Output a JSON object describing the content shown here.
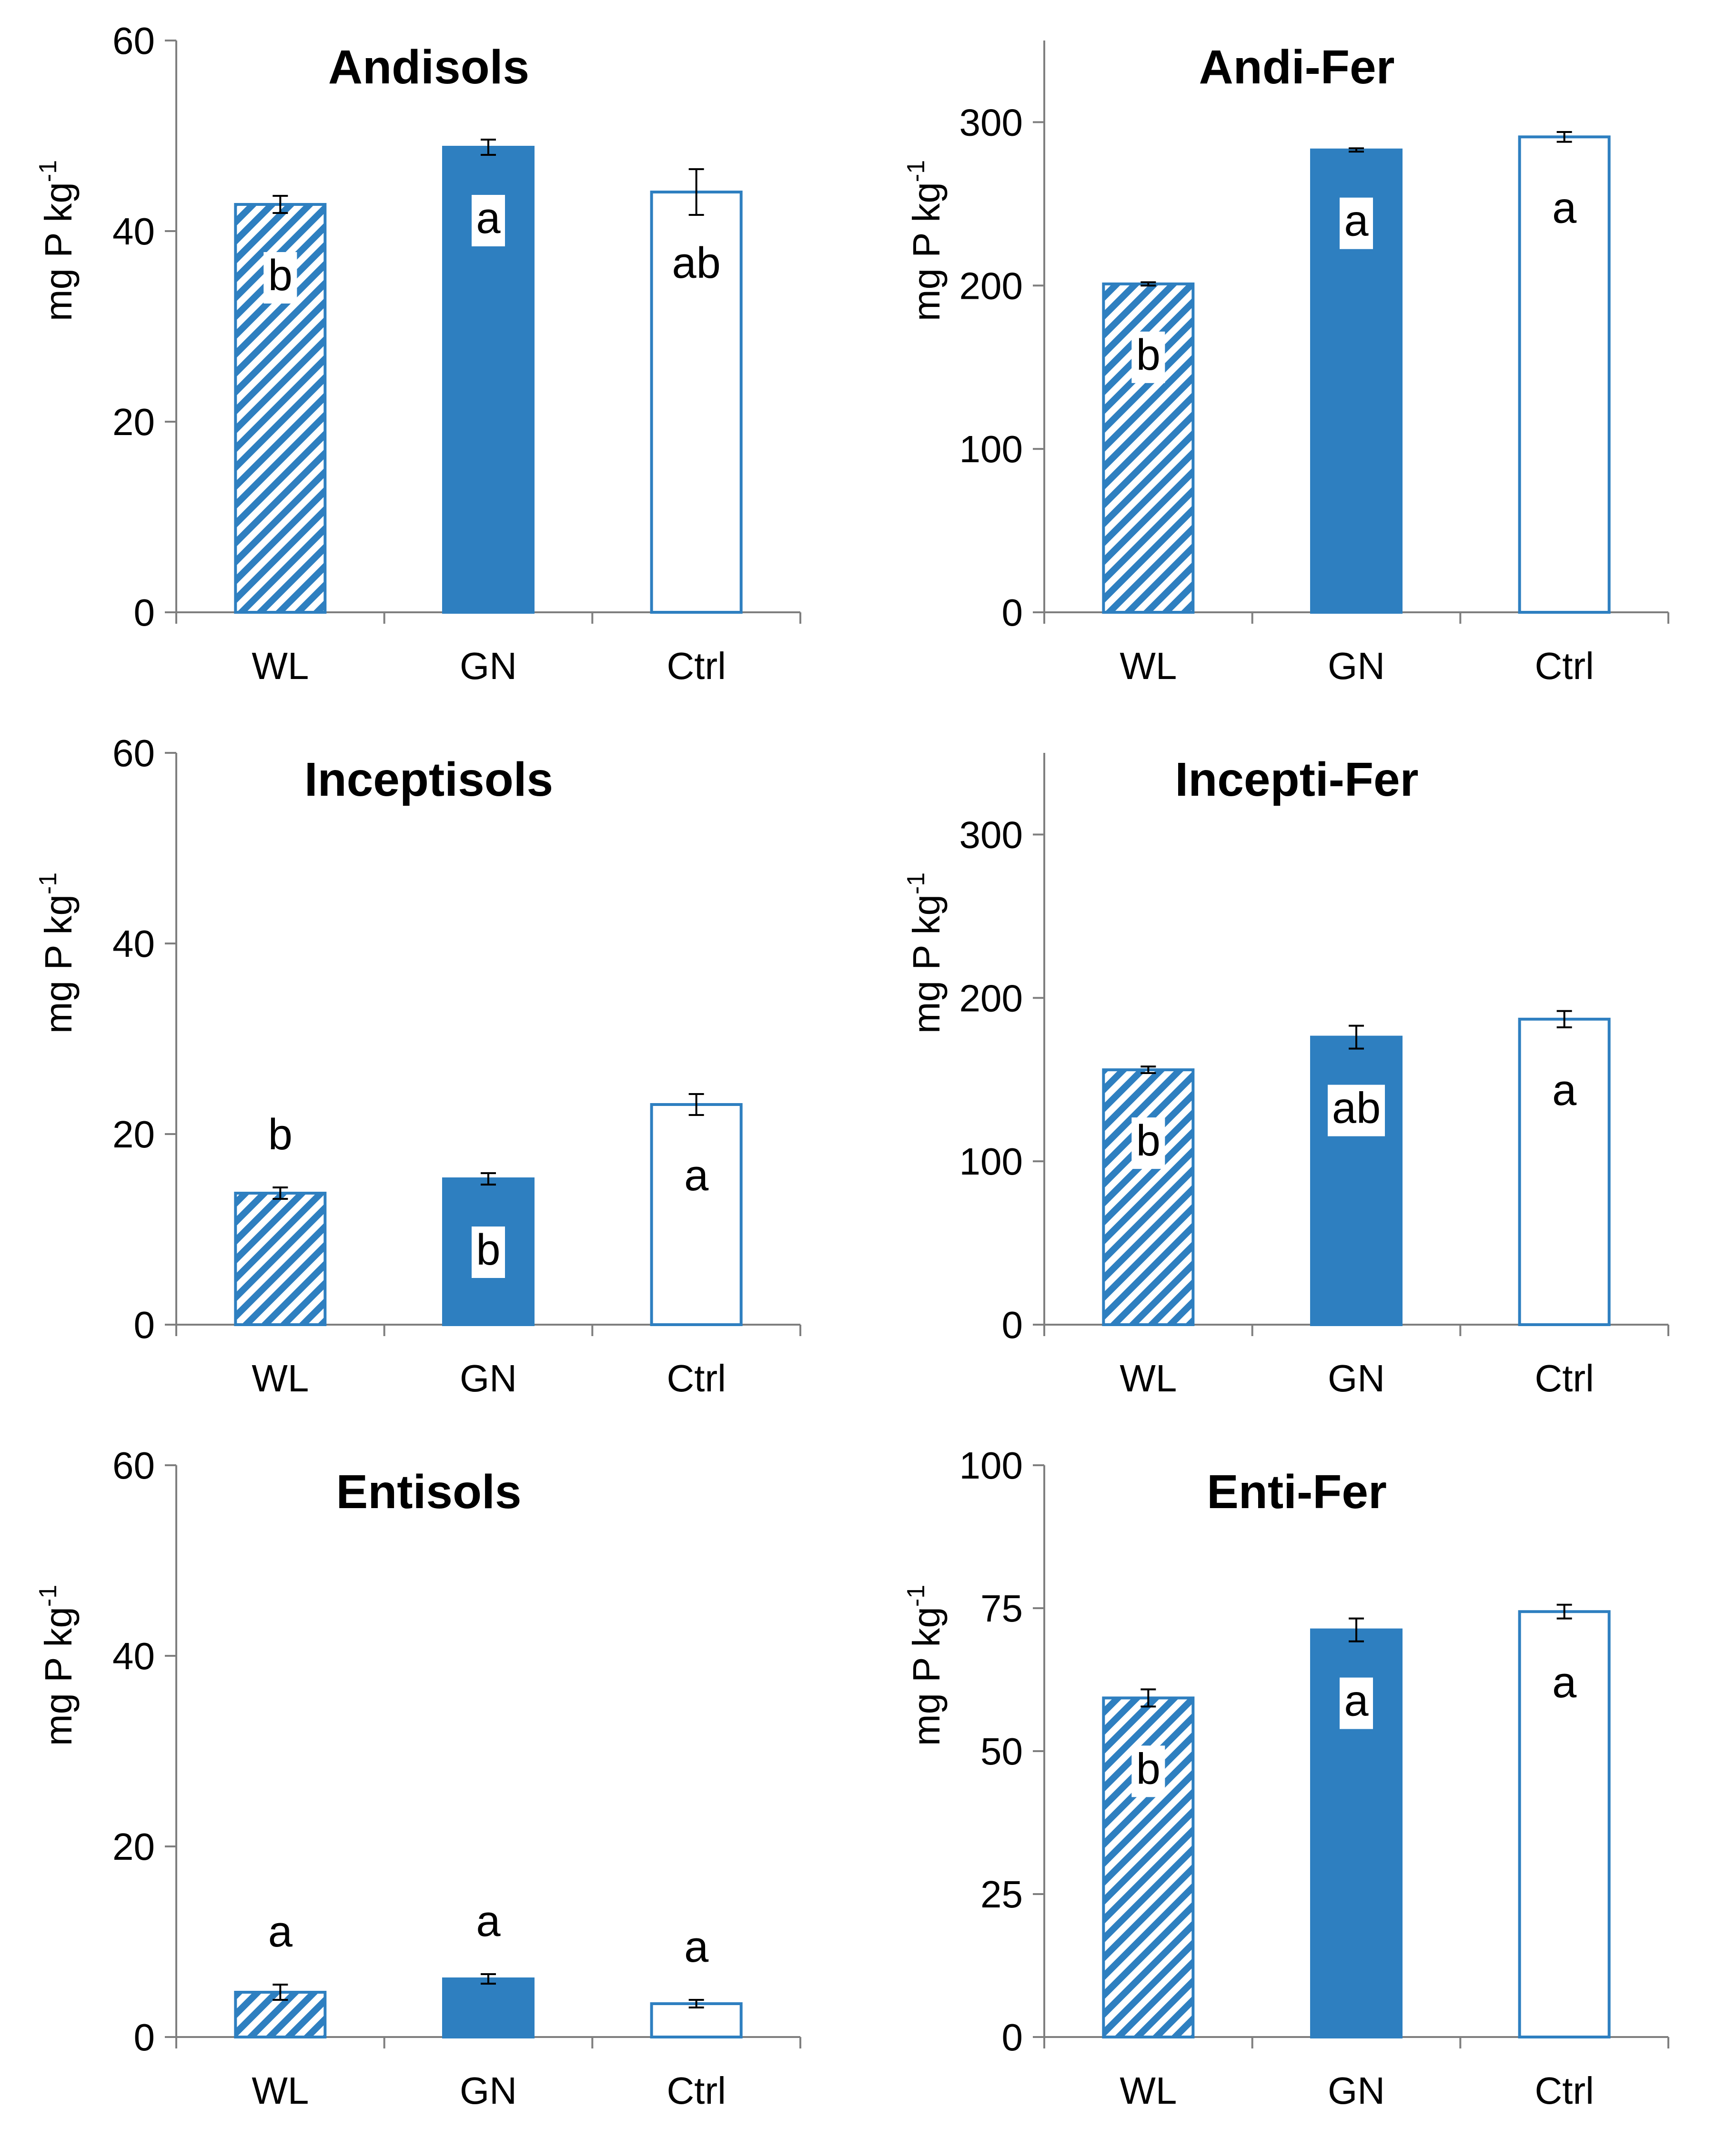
{
  "colors": {
    "bar_blue": "#2e7fc0",
    "axis": "#7f7f7f",
    "text": "#000000",
    "label_bg": "#ffffff"
  },
  "legend_styles": {
    "WL": "hatched",
    "GN": "solid",
    "Ctrl": "outline"
  },
  "chart_data": [
    {
      "type": "bar",
      "title": "Andisols",
      "ylabel": "mg P kg",
      "ylabel_sup": "-1",
      "categories": [
        "WL",
        "GN",
        "Ctrl"
      ],
      "values": [
        42.8,
        48.8,
        44.1
      ],
      "errors": [
        0.9,
        0.8,
        2.4
      ],
      "letters": [
        "b",
        "a",
        "ab"
      ],
      "ylim": [
        0,
        60
      ],
      "yticks": [
        0,
        20,
        40,
        60
      ]
    },
    {
      "type": "bar",
      "title": "Andi-Fer",
      "ylabel": "mg P kg",
      "ylabel_sup": "-1",
      "categories": [
        "WL",
        "GN",
        "Ctrl"
      ],
      "values": [
        201,
        283,
        291
      ],
      "errors": [
        1,
        1,
        3
      ],
      "letters": [
        "b",
        "a",
        "a"
      ],
      "ylim": [
        0,
        350
      ],
      "yticks": [
        0,
        100,
        200,
        300
      ]
    },
    {
      "type": "bar",
      "title": "Inceptisols",
      "ylabel": "mg P kg",
      "ylabel_sup": "-1",
      "categories": [
        "WL",
        "GN",
        "Ctrl"
      ],
      "values": [
        13.8,
        15.3,
        23.1
      ],
      "errors": [
        0.6,
        0.6,
        1.1
      ],
      "letters": [
        "b",
        "b",
        "a"
      ],
      "ylim": [
        0,
        60
      ],
      "yticks": [
        0,
        20,
        40,
        60
      ]
    },
    {
      "type": "bar",
      "title": "Incepti-Fer",
      "ylabel": "mg P kg",
      "ylabel_sup": "-1",
      "categories": [
        "WL",
        "GN",
        "Ctrl"
      ],
      "values": [
        156,
        176,
        187
      ],
      "errors": [
        2,
        7,
        5
      ],
      "letters": [
        "b",
        "ab",
        "a"
      ],
      "ylim": [
        0,
        350
      ],
      "yticks": [
        0,
        100,
        200,
        300
      ]
    },
    {
      "type": "bar",
      "title": "Entisols",
      "ylabel": "mg P kg",
      "ylabel_sup": "-1",
      "categories": [
        "WL",
        "GN",
        "Ctrl"
      ],
      "values": [
        4.7,
        6.1,
        3.5
      ],
      "errors": [
        0.8,
        0.5,
        0.4
      ],
      "letters": [
        "a",
        "a",
        "a"
      ],
      "ylim": [
        0,
        60
      ],
      "yticks": [
        0,
        20,
        40,
        60
      ]
    },
    {
      "type": "bar",
      "title": "Enti-Fer",
      "ylabel": "mg P kg",
      "ylabel_sup": "-1",
      "categories": [
        "WL",
        "GN",
        "Ctrl"
      ],
      "values": [
        59.3,
        71.2,
        74.4
      ],
      "errors": [
        1.5,
        2.0,
        1.2
      ],
      "letters": [
        "b",
        "a",
        "a"
      ],
      "ylim": [
        0,
        100
      ],
      "yticks": [
        0,
        25,
        50,
        75,
        100
      ]
    }
  ]
}
